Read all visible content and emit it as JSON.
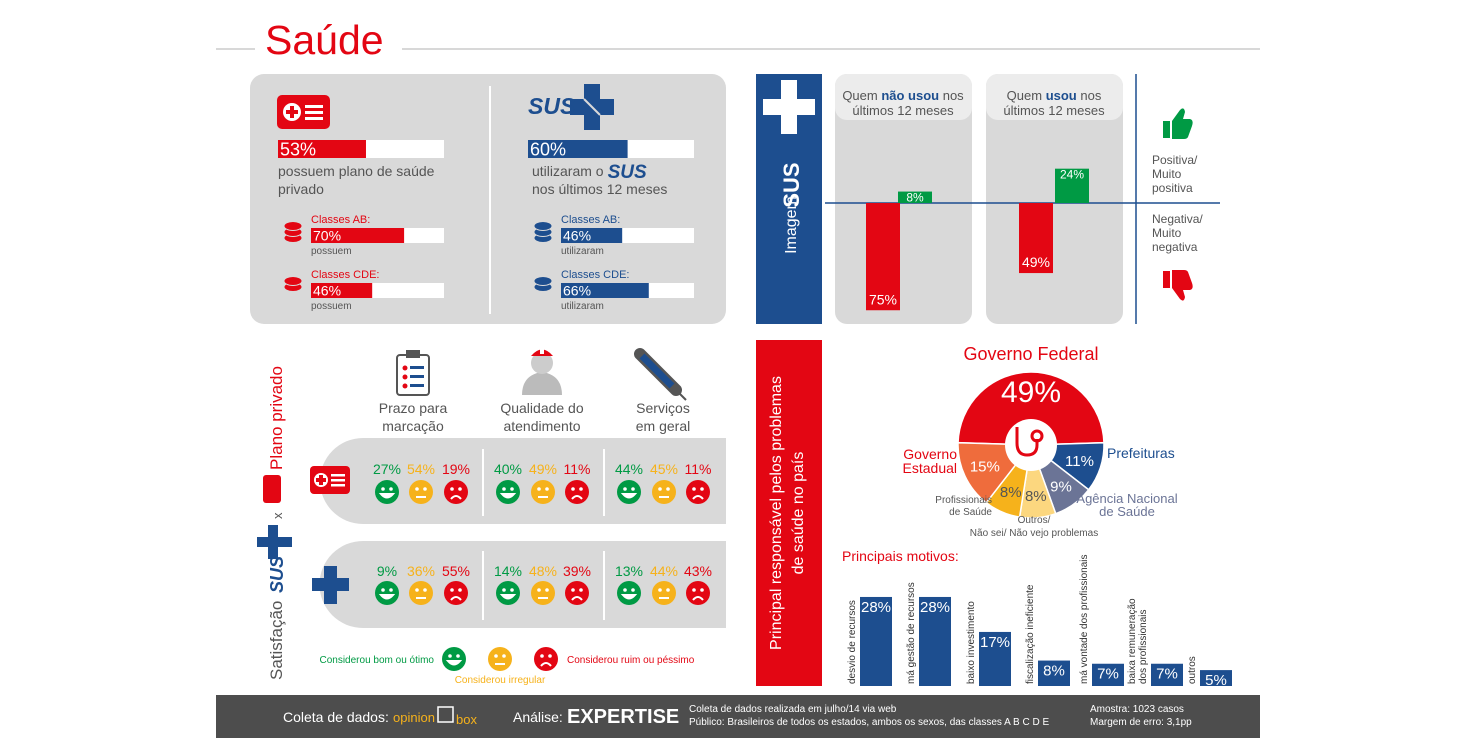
{
  "header": {
    "title": "Saúde"
  },
  "usage": {
    "private": {
      "value": 53,
      "value_label": "53%",
      "text_lines": [
        "possuem plano de saúde",
        "privado"
      ],
      "classes": [
        {
          "label": "Classes AB:",
          "value": 70,
          "value_label": "70%",
          "note": "possuem"
        },
        {
          "label": "Classes CDE:",
          "value": 46,
          "value_label": "46%",
          "note": "possuem"
        }
      ]
    },
    "sus": {
      "logo": "SUS",
      "value": 60,
      "value_label": "60%",
      "text_before": "utilizaram o",
      "text_logo": "SUS",
      "text_after": "nos últimos 12 meses",
      "classes": [
        {
          "label": "Classes AB:",
          "value": 46,
          "value_label": "46%",
          "note": "utilizaram"
        },
        {
          "label": "Classes CDE:",
          "value": 66,
          "value_label": "66%",
          "note": "utilizaram"
        }
      ]
    }
  },
  "image": {
    "title": "Imagem",
    "logo": "SUS",
    "groups": [
      {
        "label": [
          [
            "Quem ",
            "não usou",
            " nos"
          ],
          [
            "últimos 12 meses"
          ]
        ],
        "negative": 75,
        "negative_label": "75%",
        "positive": 8,
        "positive_label": "8%"
      },
      {
        "label": [
          [
            "Quem ",
            "usou",
            " nos"
          ],
          [
            "últimos 12 meses"
          ]
        ],
        "negative": 49,
        "negative_label": "49%",
        "positive": 24,
        "positive_label": "24%"
      }
    ],
    "positive_legend": [
      "Positiva/",
      "Muito",
      "positiva"
    ],
    "negative_legend": [
      "Negativa/",
      "Muito",
      "negativa"
    ],
    "colors": {
      "positive": "#009a44",
      "negative": "#e30613"
    }
  },
  "satisfaction": {
    "title": [
      "Satisfação",
      "SUS",
      "x",
      "Plano privado"
    ],
    "columns": [
      [
        "Prazo para",
        "marcação"
      ],
      [
        "Qualidade do",
        "atendimento"
      ],
      [
        "Serviços",
        "em geral"
      ]
    ],
    "rows": [
      [
        [
          "27%",
          "54%",
          "19%"
        ],
        [
          "40%",
          "49%",
          "11%"
        ],
        [
          "44%",
          "45%",
          "11%"
        ]
      ],
      [
        [
          "9%",
          "36%",
          "55%"
        ],
        [
          "14%",
          "48%",
          "39%"
        ],
        [
          "13%",
          "44%",
          "43%"
        ]
      ]
    ],
    "legend": [
      "Considerou bom ou ótimo",
      "Considerou irregular",
      "Considerou ruim ou péssimo"
    ],
    "colors": [
      "#009a44",
      "#f6b21b",
      "#e30613"
    ]
  },
  "responsibility": {
    "title": [
      "Principal responsável pelos problemas",
      "de saúde no país"
    ],
    "pie": {
      "type": "pie",
      "categories": [
        [
          "Governo Federal"
        ],
        [
          "Prefeituras"
        ],
        [
          "Agência Nacional",
          "de Saúde"
        ],
        [
          "Outros/",
          "Não sei/ Não vejo problemas"
        ],
        [
          "Profissionais",
          "de Saúde"
        ],
        [
          "Governo",
          "Estadual"
        ]
      ],
      "values": [
        49,
        11,
        9,
        8,
        8,
        15
      ],
      "value_labels": [
        "49%",
        "11%",
        "9%",
        "8%",
        "8%",
        "15%"
      ],
      "colors": [
        "#e30613",
        "#1d4e8f",
        "#6b7496",
        "#fcd77f",
        "#f6b21b",
        "#ef6c3c"
      ]
    },
    "reasons": {
      "type": "bar",
      "title": "Principais motivos:",
      "categories": [
        [
          "desvio de recursos"
        ],
        [
          "má gestão de recursos"
        ],
        [
          "baixo investimento"
        ],
        [
          "fiscalização ineficiente"
        ],
        [
          "má vontade dos profissionais"
        ],
        [
          "baixa remuneração",
          "dos profissionais"
        ],
        [
          "outros"
        ]
      ],
      "values": [
        28,
        28,
        17,
        8,
        7,
        7,
        5
      ],
      "value_labels": [
        "28%",
        "28%",
        "17%",
        "8%",
        "7%",
        "7%",
        "5%"
      ],
      "color": "#1d4e8f"
    }
  },
  "footer": {
    "collection_label": "Coleta de dados:",
    "collection_brand": [
      "opinion",
      "box"
    ],
    "analysis_label": "Análise:",
    "analysis_brand": "EXPERTISE",
    "notes": [
      "Coleta de dados realizada em julho/14 via web",
      "Público: Brasileiros de todos os estados, ambos os sexos, das classes A B C D E"
    ],
    "sample": [
      "Amostra: 1023 casos",
      "Margem de erro: 3,1pp"
    ]
  }
}
